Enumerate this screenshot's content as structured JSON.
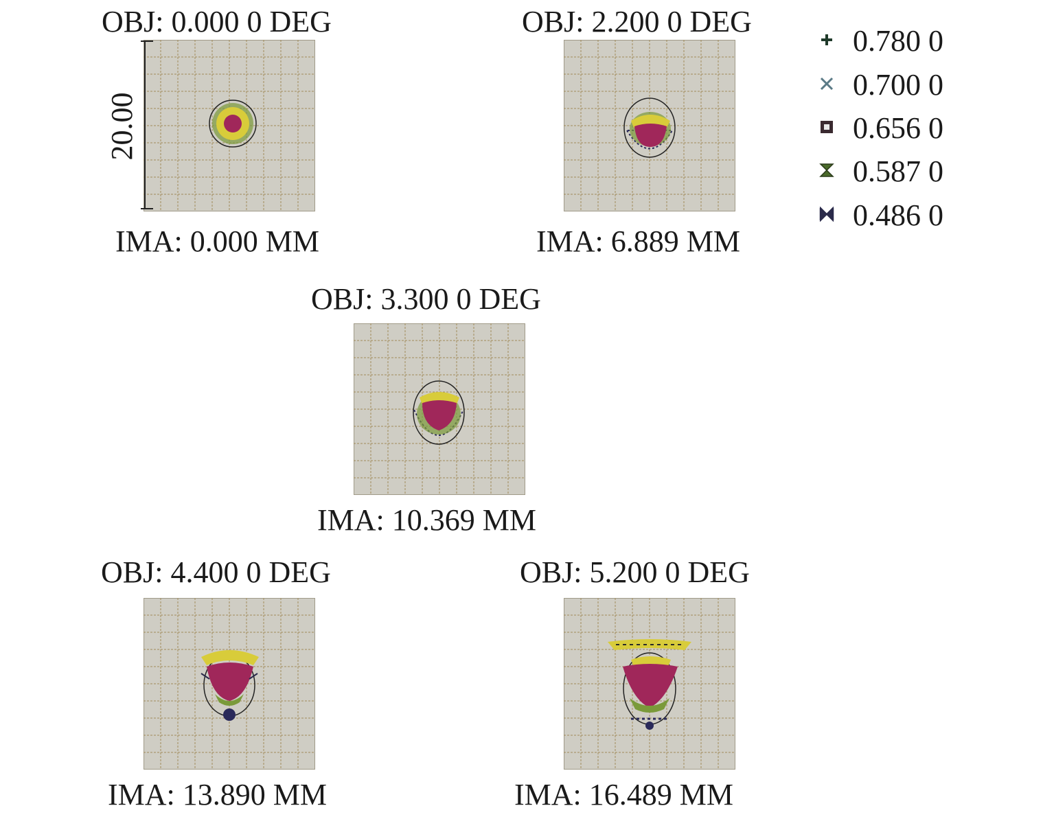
{
  "panels": [
    {
      "obj": "OBJ: 0.000 0 DEG",
      "ima": "IMA: 0.000 MM"
    },
    {
      "obj": "OBJ: 2.200 0 DEG",
      "ima": "IMA: 6.889 MM"
    },
    {
      "obj": "OBJ: 3.300 0 DEG",
      "ima": "IMA: 10.369 MM"
    },
    {
      "obj": "OBJ: 4.400 0 DEG",
      "ima": "IMA: 13.890 MM"
    },
    {
      "obj": "OBJ: 5.200 0 DEG",
      "ima": "IMA: 16.489 MM"
    }
  ],
  "scale": {
    "label": "20.00"
  },
  "legend": [
    {
      "label": "0.780 0",
      "symbol": "plus-icon",
      "color": "#1f3a2a"
    },
    {
      "label": "0.700 0",
      "symbol": "cross-icon",
      "color": "#5a7a86"
    },
    {
      "label": "0.656 0",
      "symbol": "square-icon",
      "color": "#3a2a30"
    },
    {
      "label": "0.587 0",
      "symbol": "hourglass-icon",
      "color": "#4a6a2a"
    },
    {
      "label": "0.486 0",
      "symbol": "bowtie-icon",
      "color": "#2a2a4a"
    }
  ],
  "colors": {
    "panel_bg": "#cfcdc4",
    "grid": "#a08a5a",
    "magenta": "#a0275a",
    "yellow": "#d8cc3a",
    "green": "#7a9a3a",
    "navy": "#2a2a5a"
  }
}
